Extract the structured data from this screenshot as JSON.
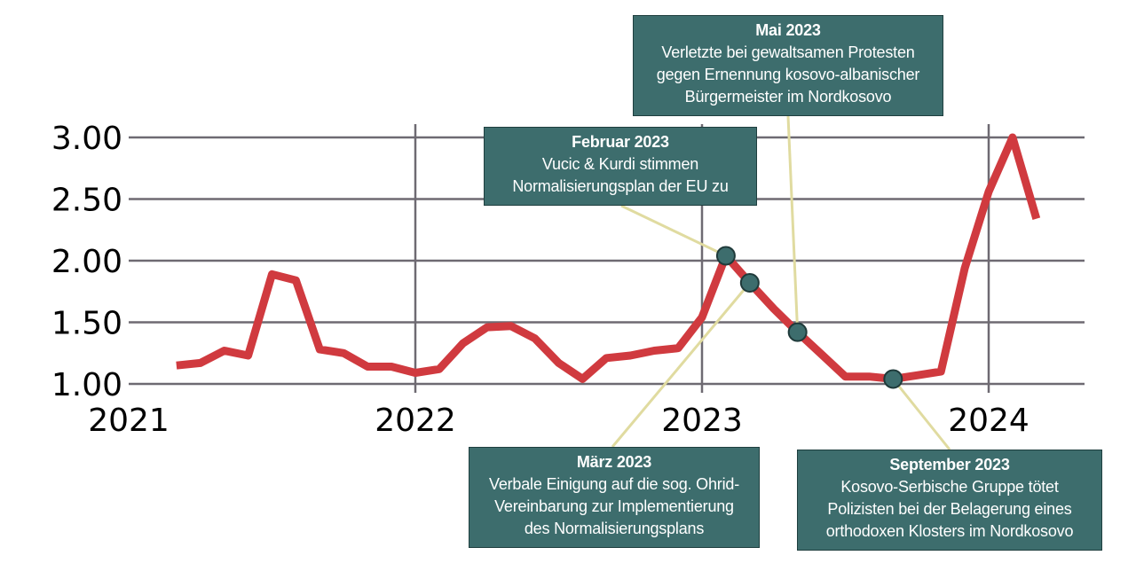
{
  "chart_data": {
    "type": "line",
    "title": "",
    "xlabel": "",
    "ylabel": "",
    "ylim": [
      1.0,
      3.0
    ],
    "y_ticks": [
      "1.00",
      "1.50",
      "2.00",
      "2.50",
      "3.00"
    ],
    "x_ticks": [
      "2021",
      "2022",
      "2023",
      "2024"
    ],
    "grid": true,
    "line_color": "#d03a3f",
    "marker_color": "#3d6d6d",
    "series": [
      {
        "x": [
          "2021-03",
          "2021-04",
          "2021-05",
          "2021-06",
          "2021-07",
          "2021-08",
          "2021-09",
          "2021-10",
          "2021-11",
          "2021-12",
          "2022-01",
          "2022-02",
          "2022-03",
          "2022-04",
          "2022-05",
          "2022-06",
          "2022-07",
          "2022-08",
          "2022-09",
          "2022-10",
          "2022-11",
          "2022-12",
          "2023-01",
          "2023-02",
          "2023-03",
          "2023-04",
          "2023-05",
          "2023-06",
          "2023-07",
          "2023-08",
          "2023-09",
          "2023-10",
          "2023-11",
          "2023-12",
          "2024-01",
          "2024-02",
          "2024-03"
        ],
        "values": [
          1.15,
          1.17,
          1.27,
          1.23,
          1.89,
          1.84,
          1.28,
          1.25,
          1.14,
          1.14,
          1.09,
          1.12,
          1.33,
          1.46,
          1.47,
          1.37,
          1.17,
          1.04,
          1.21,
          1.23,
          1.27,
          1.29,
          1.54,
          2.04,
          1.82,
          1.61,
          1.42,
          1.24,
          1.06,
          1.06,
          1.04,
          1.07,
          1.1,
          1.94,
          2.56,
          3.0,
          2.34
        ]
      }
    ],
    "annotations": [
      {
        "id": "feb2023",
        "x": "2023-02",
        "title": "Februar 2023",
        "lines": [
          "Vucic & Kurdi stimmen",
          "Normalisierungsplan der EU  zu"
        ]
      },
      {
        "id": "mar2023",
        "x": "2023-03",
        "title": "März 2023",
        "lines": [
          "Verbale Einigung auf die sog. Ohrid-",
          "Vereinbarung zur Implementierung",
          "des Normalisierungsplans"
        ]
      },
      {
        "id": "may2023",
        "x": "2023-05",
        "title": "Mai 2023",
        "lines": [
          "Verletzte bei gewaltsamen Protesten",
          "gegen Ernennung kosovo-albanischer",
          "Bürgermeister  im Nordkosovo"
        ]
      },
      {
        "id": "sep2023",
        "x": "2023-09",
        "title": "September 2023",
        "lines": [
          "Kosovo-Serbische Gruppe  tötet",
          "Polizisten bei der Belagerung eines",
          "orthodoxen Klosters im Nordkosovo"
        ]
      }
    ]
  }
}
